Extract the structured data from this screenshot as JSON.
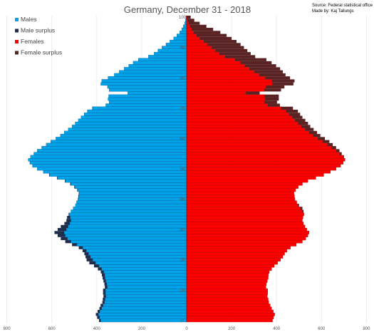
{
  "chart_data": {
    "type": "bar",
    "orientation": "horizontal",
    "title": "Germany, December 31  - 2018",
    "source_lines": [
      "Source: Federal statistical office",
      "Made by: Kaj Tallungs"
    ],
    "xlim": [
      -800,
      800
    ],
    "ylim": [
      0,
      100
    ],
    "x_ticks": [
      -800,
      -600,
      -400,
      -200,
      0,
      200,
      400,
      600,
      800
    ],
    "x_tick_labels": [
      "800",
      "600",
      "400",
      "200",
      "0",
      "200",
      "400",
      "600",
      "800"
    ],
    "y_ticks": [
      0,
      10,
      20,
      30,
      40,
      50,
      60,
      70,
      80,
      90,
      100
    ],
    "y_tick_labels": [
      "0",
      "10",
      "20",
      "30",
      "40",
      "50",
      "60",
      "70",
      "80",
      "90",
      "100"
    ],
    "grid": "vertical",
    "legend_position": "top-left",
    "legend": [
      {
        "label": "Males",
        "color": "#00a2e8"
      },
      {
        "label": "Male surplus",
        "color": "#1f2d4d"
      },
      {
        "label": "Females",
        "color": "#ff0000"
      },
      {
        "label": "Female surplus",
        "color": "#5a2323"
      }
    ],
    "ages": [
      0,
      1,
      2,
      3,
      4,
      5,
      6,
      7,
      8,
      9,
      10,
      11,
      12,
      13,
      14,
      15,
      16,
      17,
      18,
      19,
      20,
      21,
      22,
      23,
      24,
      25,
      26,
      27,
      28,
      29,
      30,
      31,
      32,
      33,
      34,
      35,
      36,
      37,
      38,
      39,
      40,
      41,
      42,
      43,
      44,
      45,
      46,
      47,
      48,
      49,
      50,
      51,
      52,
      53,
      54,
      55,
      56,
      57,
      58,
      59,
      60,
      61,
      62,
      63,
      64,
      65,
      66,
      67,
      68,
      69,
      70,
      71,
      72,
      73,
      74,
      75,
      76,
      77,
      78,
      79,
      80,
      81,
      82,
      83,
      84,
      85,
      86,
      87,
      88,
      89,
      90,
      91,
      92,
      93,
      94,
      95,
      96,
      97,
      98,
      99,
      100
    ],
    "series": [
      {
        "name": "Males",
        "values": [
          390,
          398,
          404,
          396,
          388,
          383,
          375,
          373,
          370,
          372,
          372,
          364,
          366,
          370,
          374,
          377,
          382,
          395,
          412,
          433,
          445,
          450,
          455,
          463,
          480,
          510,
          540,
          560,
          574,
          588,
          574,
          560,
          544,
          535,
          532,
          525,
          515,
          505,
          495,
          490,
          484,
          482,
          480,
          487,
          500,
          518,
          542,
          577,
          612,
          638,
          665,
          686,
          698,
          705,
          695,
          680,
          665,
          645,
          625,
          605,
          582,
          562,
          545,
          527,
          510,
          496,
          482,
          470,
          456,
          442,
          420,
          360,
          345,
          350,
          347,
          262,
          345,
          352,
          382,
          378,
          350,
          322,
          300,
          278,
          258,
          238,
          215,
          170,
          145,
          128,
          110,
          92,
          75,
          58,
          44,
          31,
          22,
          15,
          9,
          5,
          3
        ]
      },
      {
        "name": "Females",
        "values": [
          382,
          387,
          392,
          386,
          378,
          372,
          365,
          363,
          359,
          361,
          361,
          353,
          355,
          359,
          363,
          364,
          368,
          378,
          390,
          405,
          418,
          428,
          436,
          446,
          462,
          488,
          515,
          530,
          540,
          545,
          535,
          527,
          520,
          515,
          518,
          522,
          520,
          515,
          500,
          490,
          482,
          480,
          478,
          485,
          497,
          515,
          540,
          575,
          610,
          640,
          665,
          685,
          697,
          705,
          700,
          690,
          680,
          665,
          650,
          635,
          615,
          595,
          580,
          565,
          550,
          540,
          528,
          515,
          505,
          495,
          473,
          415,
          402,
          410,
          410,
          325,
          420,
          435,
          475,
          480,
          460,
          440,
          428,
          416,
          398,
          378,
          355,
          305,
          285,
          270,
          255,
          240,
          222,
          200,
          178,
          150,
          118,
          88,
          58,
          34,
          18
        ]
      }
    ]
  }
}
